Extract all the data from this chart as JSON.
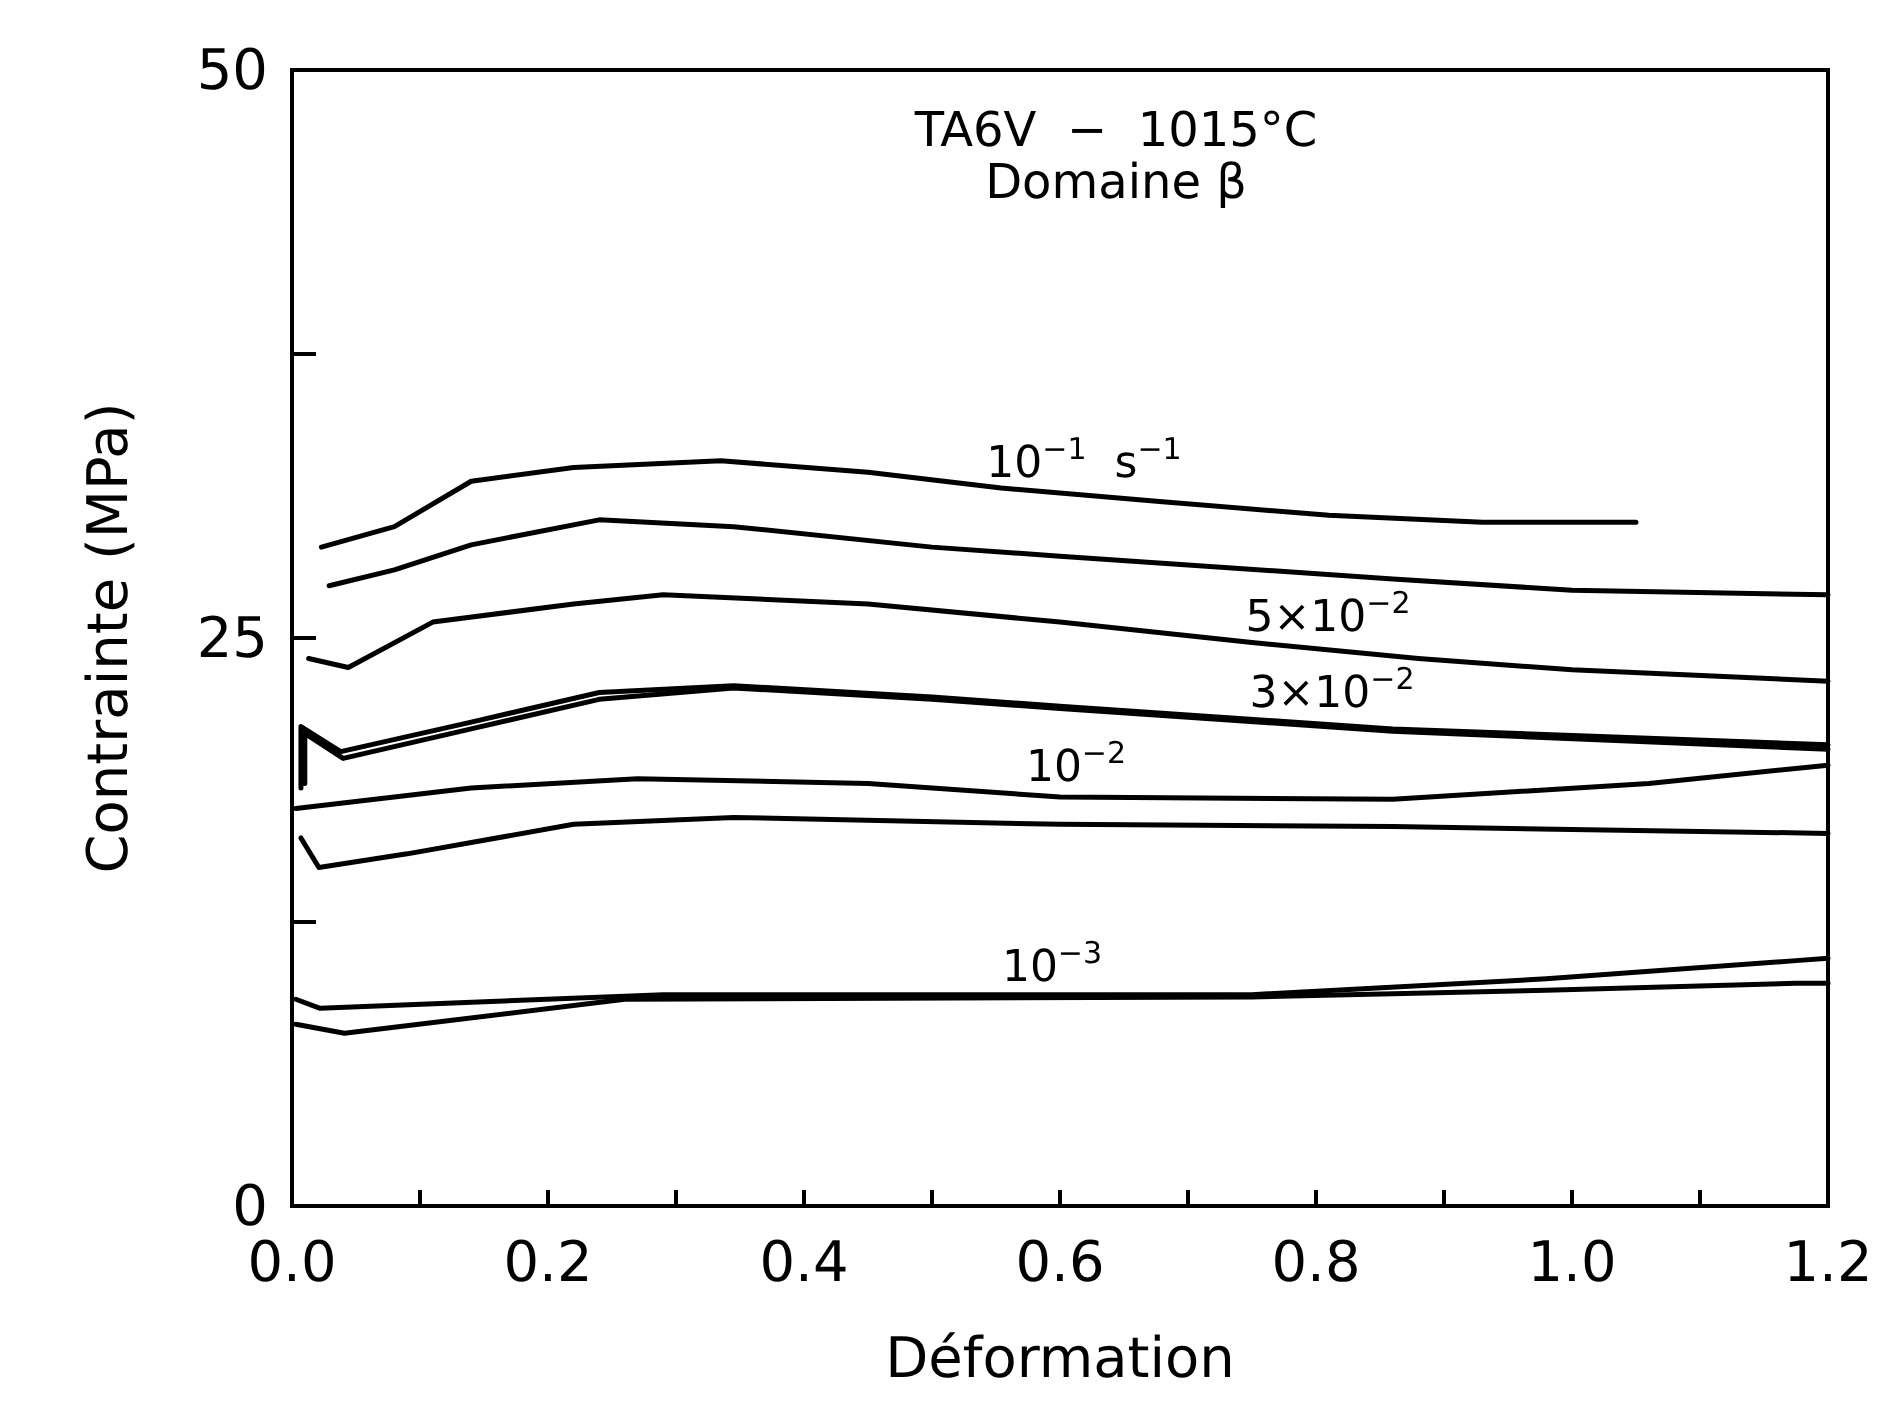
{
  "chart_data": {
    "type": "line",
    "title": "TA6V  −  1015°C",
    "subtitle": "Domaine β",
    "xlabel": "Déformation",
    "ylabel": "Contrainte (MPa)",
    "xlim": [
      0,
      1.2
    ],
    "ylim": [
      0,
      50
    ],
    "xticks": [
      {
        "value": 0,
        "label": "0.0"
      },
      {
        "value": 0.1,
        "label": null
      },
      {
        "value": 0.2,
        "label": "0.2"
      },
      {
        "value": 0.3,
        "label": null
      },
      {
        "value": 0.4,
        "label": "0.4"
      },
      {
        "value": 0.5,
        "label": null
      },
      {
        "value": 0.6,
        "label": "0.6"
      },
      {
        "value": 0.7,
        "label": null
      },
      {
        "value": 0.8,
        "label": "0.8"
      },
      {
        "value": 0.9,
        "label": null
      },
      {
        "value": 1.0,
        "label": "1.0"
      },
      {
        "value": 1.1,
        "label": null
      },
      {
        "value": 1.2,
        "label": "1.2"
      }
    ],
    "yticks": [
      0,
      {
        "value": 12.5,
        "label": null
      },
      25,
      {
        "value": 37.5,
        "label": null
      },
      50
    ],
    "grid": false,
    "marker": "none",
    "line_style": "solid",
    "series": [
      {
        "color": "#000000",
        "x": [
          0.023,
          0.08,
          0.14,
          0.22,
          0.335,
          0.45,
          0.554,
          0.68,
          0.81,
          0.93,
          1.05
        ],
        "values": [
          29.0,
          29.9,
          31.9,
          32.5,
          32.8,
          32.3,
          31.6,
          31.0,
          30.4,
          30.1,
          30.1
        ]
      },
      {
        "color": "#000000",
        "x": [
          0.029,
          0.08,
          0.14,
          0.24,
          0.345,
          0.5,
          0.6,
          0.86,
          1.0,
          1.2
        ],
        "values": [
          27.3,
          28.0,
          29.1,
          30.2,
          29.9,
          29.0,
          28.6,
          27.6,
          27.1,
          26.9
        ]
      },
      {
        "color": "#000000",
        "x": [
          0.013,
          0.044,
          0.11,
          0.22,
          0.29,
          0.45,
          0.6,
          0.75,
          0.88,
          1.0,
          1.2
        ],
        "values": [
          24.1,
          23.7,
          25.7,
          26.5,
          26.9,
          26.5,
          25.7,
          24.8,
          24.1,
          23.6,
          23.1
        ]
      },
      {
        "color": "#000000",
        "x": [
          0.007,
          0.007,
          0.038,
          0.14,
          0.24,
          0.345,
          0.5,
          0.6,
          0.86,
          1.2
        ],
        "values": [
          18.4,
          21.1,
          20.0,
          21.3,
          22.6,
          22.9,
          22.4,
          22.0,
          21.0,
          20.3
        ]
      },
      {
        "color": "#000000",
        "x": [
          0.01,
          0.01,
          0.04,
          0.14,
          0.24,
          0.345,
          0.5,
          0.6,
          0.86,
          1.2
        ],
        "values": [
          18.6,
          20.8,
          19.7,
          21.0,
          22.3,
          22.8,
          22.3,
          21.9,
          20.9,
          20.1
        ]
      },
      {
        "color": "#000000",
        "x": [
          0.003,
          0.14,
          0.27,
          0.45,
          0.6,
          0.86,
          1.06,
          1.2
        ],
        "values": [
          17.5,
          18.4,
          18.8,
          18.6,
          18.0,
          17.9,
          18.6,
          19.4
        ]
      },
      {
        "color": "#000000",
        "x": [
          0.007,
          0.021,
          0.09,
          0.22,
          0.345,
          0.6,
          0.86,
          1.2
        ],
        "values": [
          16.2,
          14.9,
          15.5,
          16.8,
          17.1,
          16.8,
          16.7,
          16.4
        ]
      },
      {
        "color": "#000000",
        "x": [
          0.003,
          0.022,
          0.29,
          0.75,
          0.98,
          1.175,
          1.2
        ],
        "values": [
          9.1,
          8.7,
          9.3,
          9.3,
          10.0,
          10.8,
          10.9
        ]
      },
      {
        "color": "#000000",
        "x": [
          0.003,
          0.041,
          0.26,
          0.75,
          0.98,
          1.175,
          1.2
        ],
        "values": [
          8.0,
          7.6,
          9.1,
          9.2,
          9.5,
          9.8,
          9.8
        ]
      }
    ],
    "annotations": [
      "10$^{−1}$  s$^{−1}$",
      "5×10$^{−2}$",
      "3×10$^{−2}$",
      "10$^{−2}$",
      "10$^{−3}$"
    ]
  }
}
